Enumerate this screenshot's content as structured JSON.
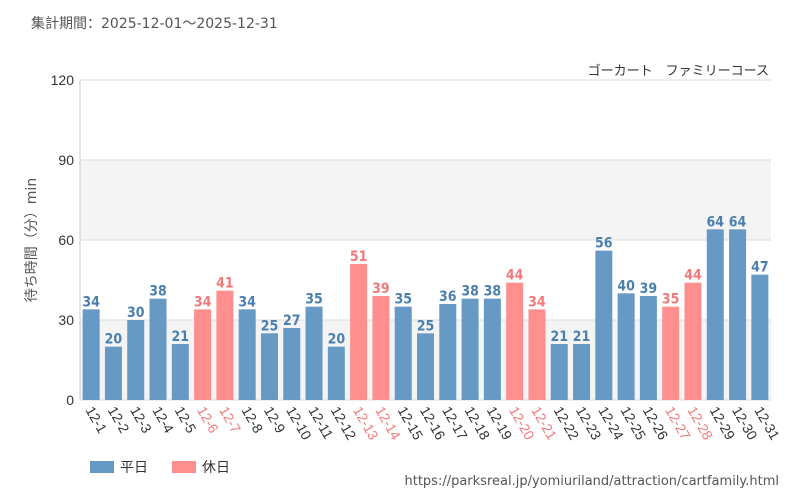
{
  "period_label": "集計期間：2025-12-01～2025-12-31",
  "source_url": "https://parksreal.jp/yomiuriland/attraction/cartfamily.html",
  "legend": {
    "weekday": {
      "label": "平日",
      "color": "#6699c3"
    },
    "holiday": {
      "label": "休日",
      "color": "#ff8f8f"
    }
  },
  "colors": {
    "weekday_label": "#4a7fb0",
    "holiday_label": "#f07a7a"
  },
  "chart_data": {
    "type": "bar",
    "title": "ゴーカート　ファミリーコース",
    "xlabel": "",
    "ylabel": "待ち時間（分）min",
    "ylim": [
      0,
      120
    ],
    "yticks": [
      0,
      30,
      60,
      90,
      120
    ],
    "grid": true,
    "categories": [
      "12-1",
      "12-2",
      "12-3",
      "12-4",
      "12-5",
      "12-6",
      "12-7",
      "12-8",
      "12-9",
      "12-10",
      "12-11",
      "12-12",
      "12-13",
      "12-14",
      "12-15",
      "12-16",
      "12-17",
      "12-18",
      "12-19",
      "12-20",
      "12-21",
      "12-22",
      "12-23",
      "12-24",
      "12-25",
      "12-26",
      "12-27",
      "12-28",
      "12-29",
      "12-30",
      "12-31"
    ],
    "values": [
      34,
      20,
      30,
      38,
      21,
      34,
      41,
      34,
      25,
      27,
      35,
      20,
      51,
      39,
      35,
      25,
      36,
      38,
      38,
      44,
      34,
      21,
      21,
      56,
      40,
      39,
      35,
      44,
      64,
      64,
      47
    ],
    "day_type": [
      "weekday",
      "weekday",
      "weekday",
      "weekday",
      "weekday",
      "holiday",
      "holiday",
      "weekday",
      "weekday",
      "weekday",
      "weekday",
      "weekday",
      "holiday",
      "holiday",
      "weekday",
      "weekday",
      "weekday",
      "weekday",
      "weekday",
      "holiday",
      "holiday",
      "weekday",
      "weekday",
      "weekday",
      "weekday",
      "weekday",
      "holiday",
      "holiday",
      "weekday",
      "weekday",
      "weekday"
    ]
  }
}
